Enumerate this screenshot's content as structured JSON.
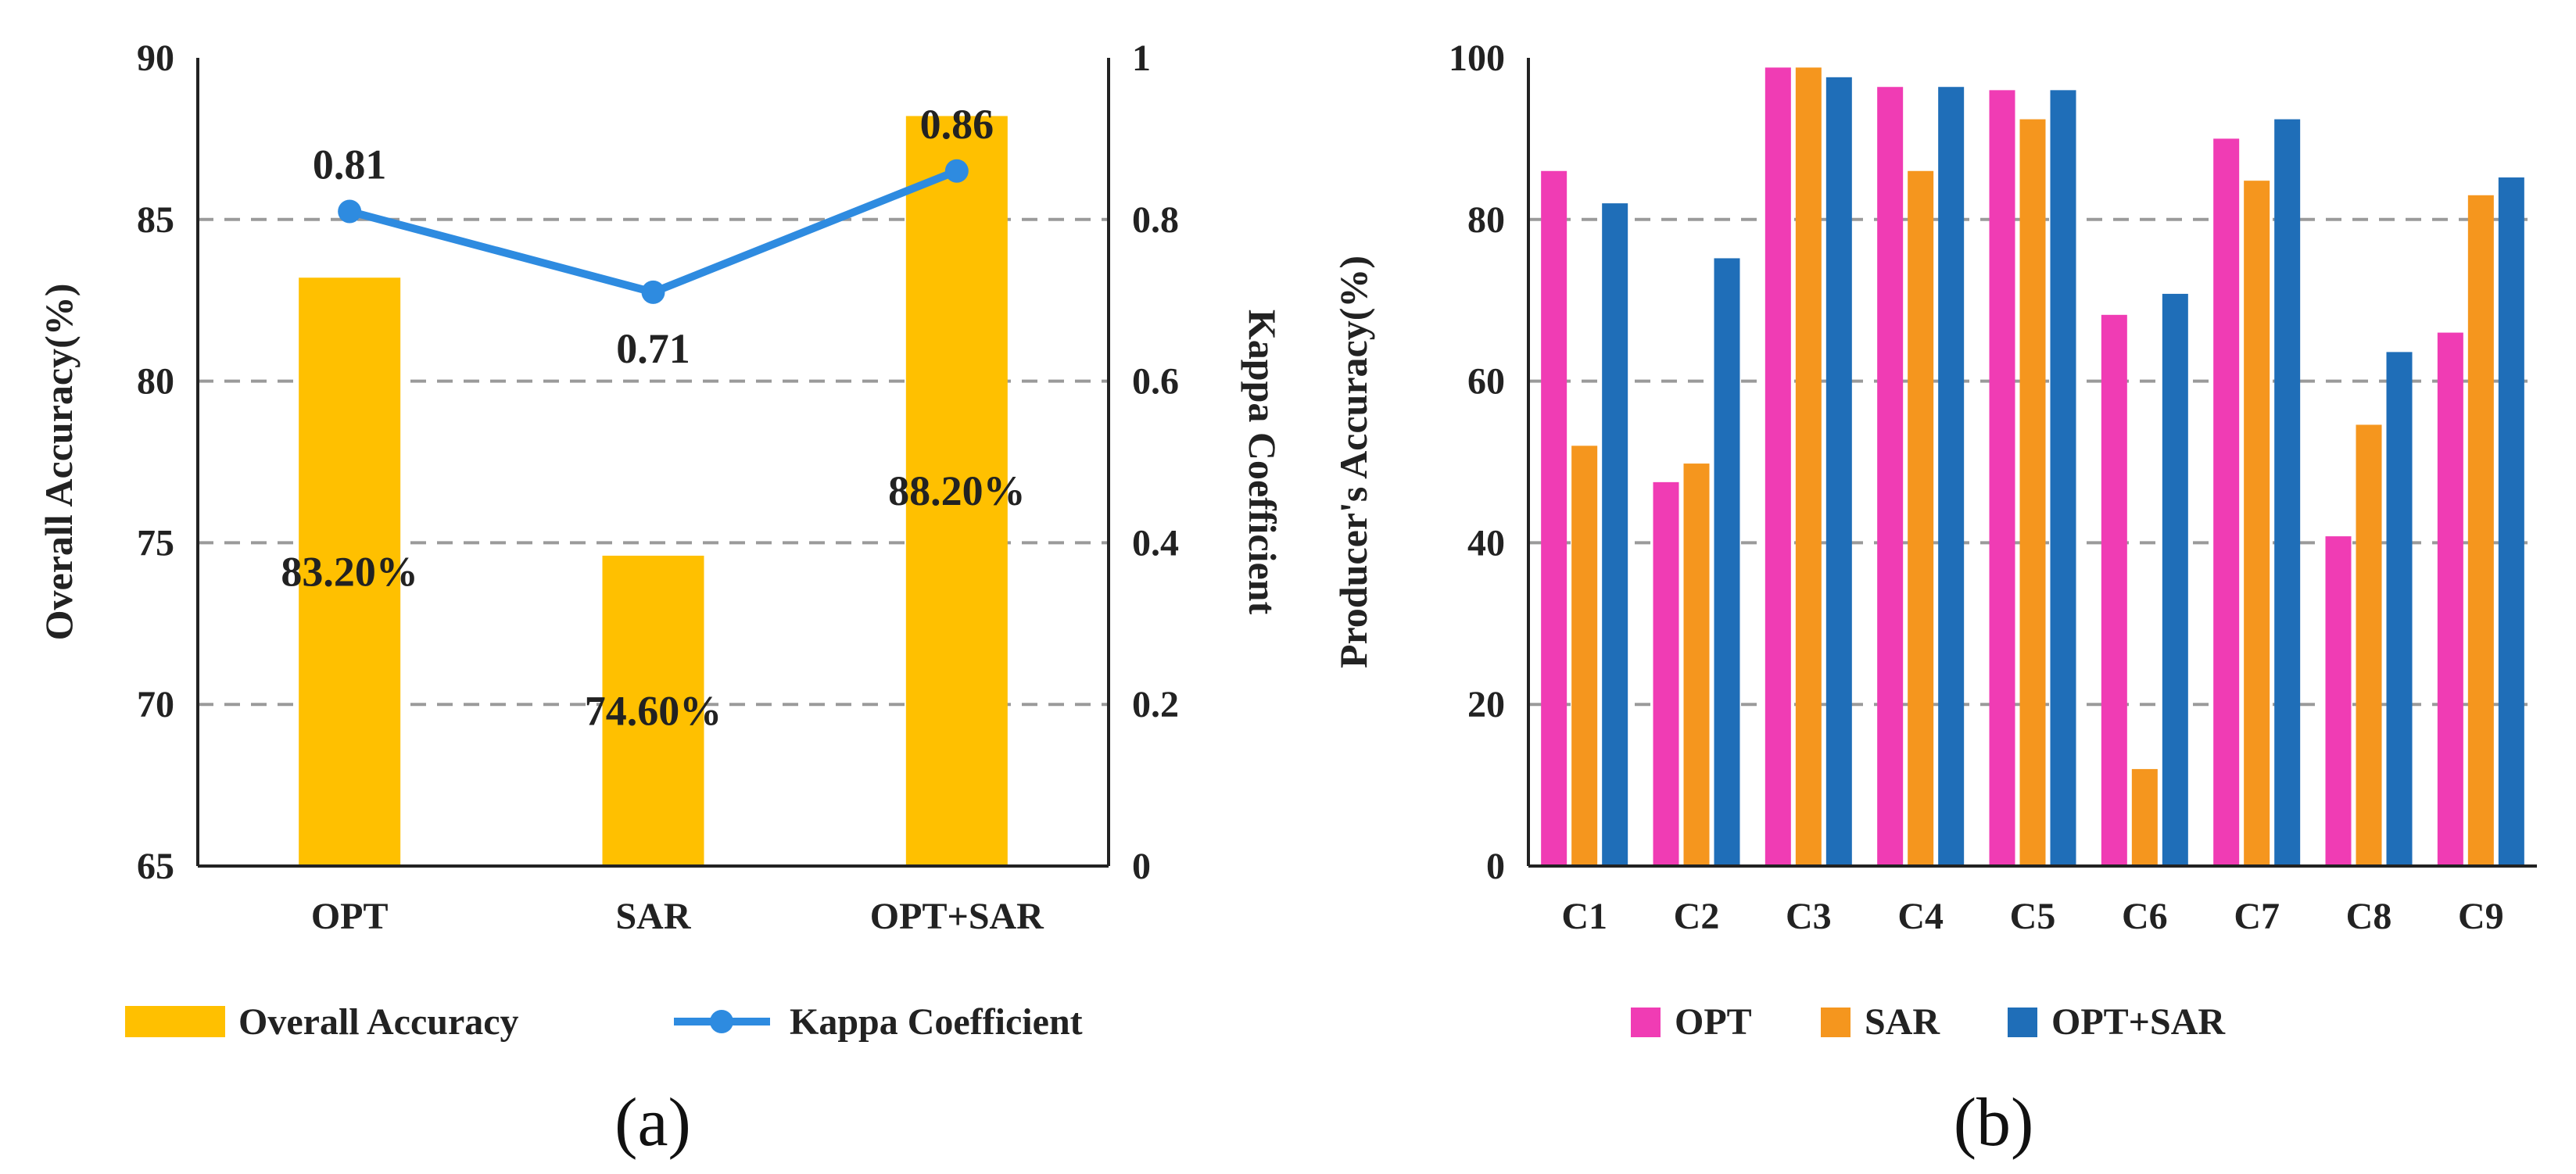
{
  "chart_data": [
    {
      "type": "bar+line",
      "caption": "(a)",
      "categories": [
        "OPT",
        "SAR",
        "OPT+SAR"
      ],
      "series": [
        {
          "name": "Overall Accuracy",
          "kind": "bar",
          "axis": "left",
          "color": "#FFC000",
          "values": [
            83.2,
            74.6,
            88.2
          ],
          "labels": [
            "83.20%",
            "74.60%",
            "88.20%"
          ]
        },
        {
          "name": "Kappa Coefficient",
          "kind": "line",
          "axis": "right",
          "color": "#2E8BE0",
          "values": [
            0.81,
            0.71,
            0.86
          ],
          "labels": [
            "0.81",
            "0.71",
            "0.86"
          ]
        }
      ],
      "ylabel": "Overall Accuracy(%)",
      "ylim": [
        65,
        90
      ],
      "yticks": [
        "65",
        "70",
        "75",
        "80",
        "85",
        "90"
      ],
      "y2label": "Kappa Coefficient",
      "y2lim": [
        0,
        1
      ],
      "y2ticks": [
        "0",
        "0.2",
        "0.4",
        "0.6",
        "0.8",
        "1"
      ],
      "grid": true,
      "legend_position": "bottom"
    },
    {
      "type": "bar",
      "caption": "(b)",
      "categories": [
        "C1",
        "C2",
        "C3",
        "C4",
        "C5",
        "C6",
        "C7",
        "C8",
        "C9"
      ],
      "series": [
        {
          "name": "OPT",
          "color": "#F03CB4",
          "values": [
            86,
            47.5,
            98.8,
            96.4,
            96,
            68.2,
            90,
            40.8,
            66
          ]
        },
        {
          "name": "SAR",
          "color": "#F5961E",
          "values": [
            52,
            49.8,
            98.8,
            86,
            92.4,
            12,
            84.8,
            54.6,
            83
          ]
        },
        {
          "name": "OPT+SAR",
          "color": "#1F6EB8",
          "values": [
            82,
            75.2,
            97.6,
            96.4,
            96,
            70.8,
            92.4,
            63.6,
            85.2
          ]
        }
      ],
      "ylabel": "Producer's Accuracy(%)",
      "ylim": [
        0,
        100
      ],
      "yticks": [
        "0",
        "20",
        "40",
        "60",
        "80",
        "100"
      ],
      "grid": true,
      "legend_position": "bottom"
    }
  ]
}
